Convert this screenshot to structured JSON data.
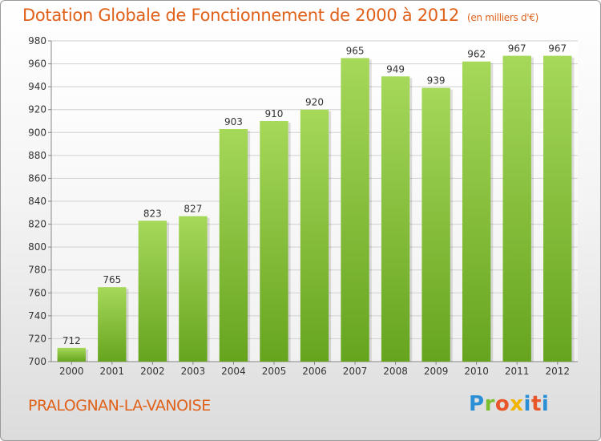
{
  "header": {
    "title": "Dotation Globale de Fonctionnement de 2000 à 2012",
    "unit_note": "(en milliers d'€)"
  },
  "footer": {
    "commune": "PRALOGNAN-LA-VANOISE",
    "logo_text": "Proxiti"
  },
  "colors": {
    "title": "#e0611a",
    "bar_light": "#a6d85a",
    "bar_dark": "#66a41e",
    "grid": "#d0d0d0"
  },
  "chart_data": {
    "type": "bar",
    "title": "Dotation Globale de Fonctionnement de 2000 à 2012",
    "subtitle": "(en milliers d'€)",
    "xlabel": "",
    "ylabel": "",
    "categories": [
      "2000",
      "2001",
      "2002",
      "2003",
      "2004",
      "2005",
      "2006",
      "2007",
      "2008",
      "2009",
      "2010",
      "2011",
      "2012"
    ],
    "values": [
      712,
      765,
      823,
      827,
      903,
      910,
      920,
      965,
      949,
      939,
      962,
      967,
      967
    ],
    "value_labels": [
      "712",
      "765",
      "823",
      "827",
      "903",
      "910",
      "920",
      "965",
      "949",
      "939",
      "962",
      "967",
      "967"
    ],
    "ylim": [
      700,
      980
    ],
    "yticks": [
      700,
      720,
      740,
      760,
      780,
      800,
      820,
      840,
      860,
      880,
      900,
      920,
      940,
      960,
      980
    ],
    "grid": true,
    "legend": "none"
  }
}
